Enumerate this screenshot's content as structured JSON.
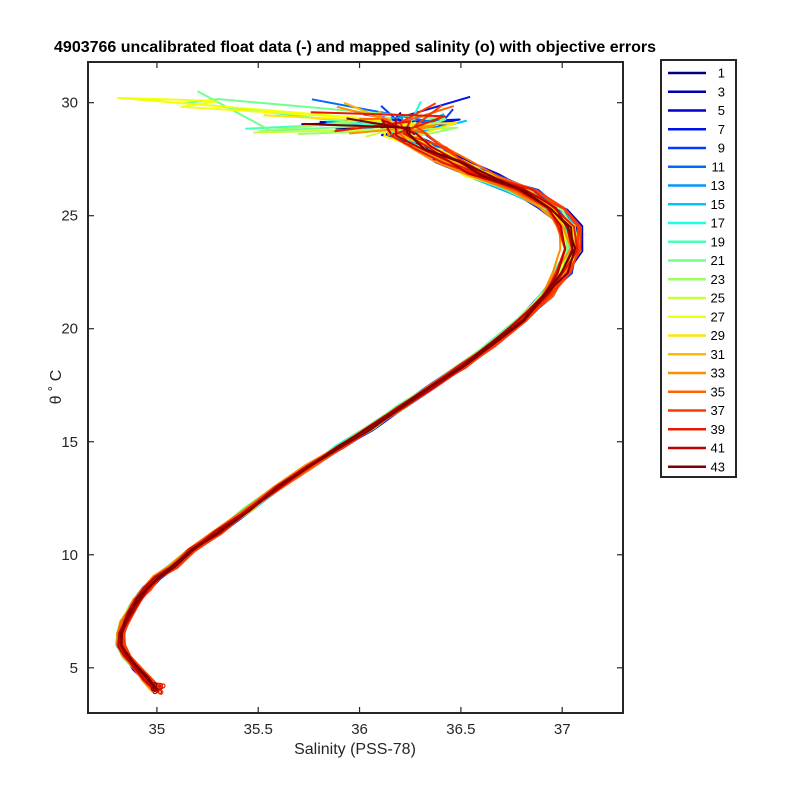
{
  "chart_data": {
    "type": "line",
    "title": "4903766 uncalibrated float data (-) and mapped salinity (o) with objective errors",
    "xlabel": "Salinity (PSS-78)",
    "ylabel": "θ ˚ C",
    "xlim": [
      34.66,
      37.3
    ],
    "ylim": [
      3.0,
      31.8
    ],
    "xticks": [
      35,
      35.5,
      36,
      36.5,
      37
    ],
    "xtick_labels": [
      "35",
      "35.5",
      "36",
      "36.5",
      "37"
    ],
    "yticks": [
      5,
      10,
      15,
      20,
      25,
      30
    ],
    "ytick_labels": [
      "5",
      "10",
      "15",
      "20",
      "25",
      "30"
    ],
    "grid": false,
    "legend_position": "outside-right",
    "colormap": "jet",
    "base_profile": [
      [
        35.0,
        4.0
      ],
      [
        34.95,
        4.5
      ],
      [
        34.9,
        5.0
      ],
      [
        34.85,
        5.5
      ],
      [
        34.82,
        6.0
      ],
      [
        34.82,
        6.5
      ],
      [
        34.84,
        7.0
      ],
      [
        34.87,
        7.5
      ],
      [
        34.9,
        8.0
      ],
      [
        34.95,
        8.5
      ],
      [
        35.0,
        9.0
      ],
      [
        35.08,
        9.5
      ],
      [
        35.17,
        10.2
      ],
      [
        35.3,
        11.0
      ],
      [
        35.45,
        12.0
      ],
      [
        35.6,
        13.0
      ],
      [
        35.75,
        13.9
      ],
      [
        35.9,
        14.75
      ],
      [
        36.05,
        15.6
      ],
      [
        36.2,
        16.5
      ],
      [
        36.35,
        17.4
      ],
      [
        36.5,
        18.3
      ],
      [
        36.65,
        19.3
      ],
      [
        36.8,
        20.4
      ],
      [
        36.92,
        21.5
      ],
      [
        37.0,
        22.5
      ],
      [
        37.05,
        23.5
      ],
      [
        37.03,
        24.5
      ],
      [
        36.95,
        25.3
      ],
      [
        36.8,
        26.1
      ],
      [
        36.6,
        26.8
      ],
      [
        36.45,
        27.4
      ],
      [
        36.35,
        28.0
      ],
      [
        36.22,
        28.6
      ]
    ],
    "series": [
      {
        "name": "1",
        "color": "#000080"
      },
      {
        "name": "3",
        "color": "#0000a4"
      },
      {
        "name": "5",
        "color": "#0000c9"
      },
      {
        "name": "7",
        "color": "#0011ee"
      },
      {
        "name": "9",
        "color": "#003dff"
      },
      {
        "name": "11",
        "color": "#006aff"
      },
      {
        "name": "13",
        "color": "#0097ff"
      },
      {
        "name": "15",
        "color": "#00c4ff"
      },
      {
        "name": "17",
        "color": "#1bffe4"
      },
      {
        "name": "19",
        "color": "#46ffb9"
      },
      {
        "name": "21",
        "color": "#71ff8e"
      },
      {
        "name": "23",
        "color": "#9cff63"
      },
      {
        "name": "25",
        "color": "#c7ff38"
      },
      {
        "name": "27",
        "color": "#f2ff0d"
      },
      {
        "name": "29",
        "color": "#ffe500"
      },
      {
        "name": "31",
        "color": "#ffb900"
      },
      {
        "name": "33",
        "color": "#ff8e00"
      },
      {
        "name": "35",
        "color": "#ff6300"
      },
      {
        "name": "37",
        "color": "#ff3800"
      },
      {
        "name": "39",
        "color": "#e41b00"
      },
      {
        "name": "41",
        "color": "#bf0000"
      },
      {
        "name": "43",
        "color": "#800000"
      }
    ]
  }
}
